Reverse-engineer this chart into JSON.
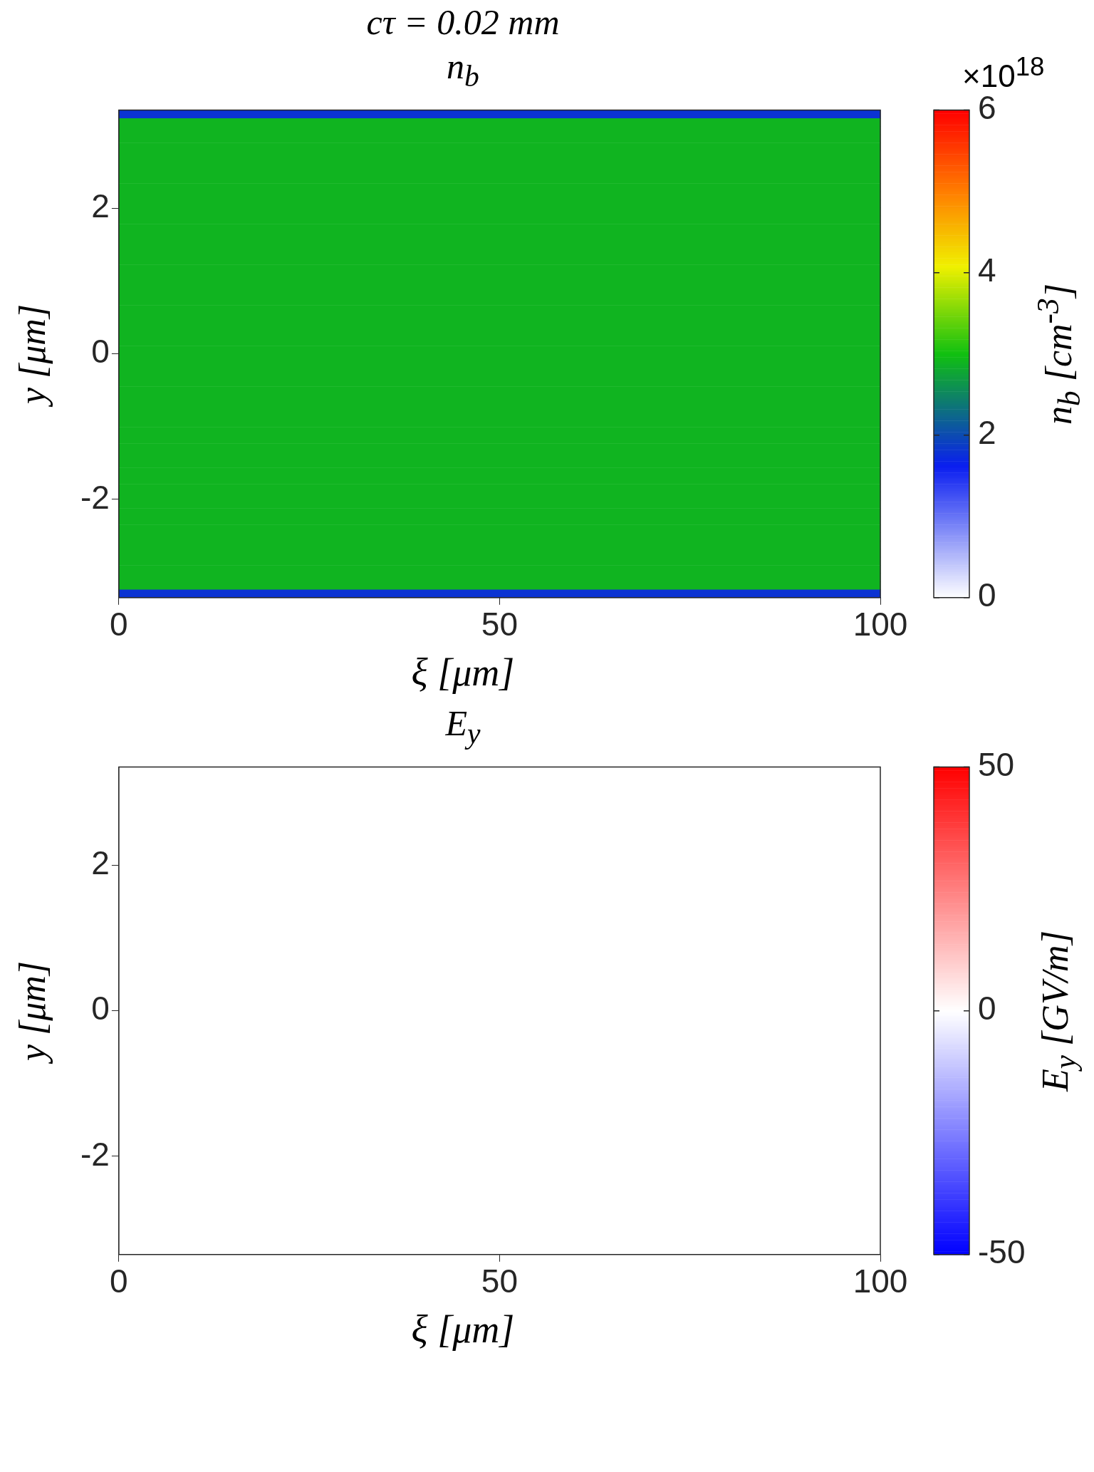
{
  "chart_data": [
    {
      "type": "heatmap",
      "title": "cτ = 0.02 mm",
      "subtitle": "n$_{b}$",
      "xlabel": "ξ [μm]",
      "ylabel": "y [μm]",
      "clabel": "n$_{b}$ [cm$^{-3}$]",
      "annotations": [
        "×10$^{18}$"
      ],
      "xlim": [
        0,
        100
      ],
      "xticks": [
        0,
        50,
        100
      ],
      "ylim": [
        -3.35,
        3.35
      ],
      "yticks": [
        -2,
        0,
        2
      ],
      "clim": [
        0,
        6
      ],
      "cticks": [
        0,
        2,
        4,
        6
      ],
      "cells": [
        [
          1.8
        ],
        [
          2.9
        ],
        [
          2.9
        ],
        [
          2.9
        ],
        [
          2.9
        ],
        [
          2.9
        ],
        [
          2.9
        ],
        [
          2.9
        ],
        [
          2.9
        ],
        [
          2.9
        ],
        [
          2.9
        ],
        [
          2.9
        ],
        [
          2.9
        ],
        [
          2.9
        ],
        [
          2.9
        ],
        [
          2.9
        ],
        [
          2.9
        ],
        [
          2.9
        ],
        [
          2.9
        ],
        [
          2.9
        ],
        [
          2.9
        ],
        [
          2.9
        ],
        [
          2.9
        ],
        [
          2.9
        ],
        [
          2.9
        ],
        [
          2.9
        ],
        [
          2.9
        ],
        [
          2.9
        ],
        [
          2.9
        ],
        [
          2.9
        ],
        [
          2.9
        ],
        [
          2.9
        ],
        [
          2.9
        ],
        [
          2.9
        ],
        [
          2.9
        ],
        [
          2.9
        ],
        [
          2.9
        ],
        [
          2.9
        ],
        [
          2.9
        ],
        [
          2.9
        ],
        [
          2.9
        ],
        [
          2.9
        ],
        [
          2.9
        ],
        [
          2.9
        ],
        [
          2.9
        ],
        [
          2.9
        ],
        [
          2.9
        ],
        [
          2.9
        ],
        [
          2.9
        ],
        [
          2.9
        ],
        [
          2.9
        ],
        [
          2.9
        ],
        [
          2.9
        ],
        [
          2.9
        ],
        [
          2.9
        ],
        [
          2.9
        ],
        [
          2.9
        ],
        [
          2.9
        ],
        [
          2.9
        ],
        [
          1.8
        ]
      ]
    },
    {
      "type": "heatmap",
      "title": "E$_{y}$",
      "xlabel": "ξ [μm]",
      "ylabel": "y [μm]",
      "clabel": "E$_{y}$ [GV/m]",
      "xlim": [
        0,
        100
      ],
      "xticks": [
        0,
        50,
        100
      ],
      "ylim": [
        -3.35,
        3.35
      ],
      "yticks": [
        -2,
        0,
        2
      ],
      "clim": [
        -50,
        50
      ],
      "cticks": [
        -50,
        0,
        50
      ],
      "cells": [
        [
          0
        ]
      ]
    }
  ]
}
